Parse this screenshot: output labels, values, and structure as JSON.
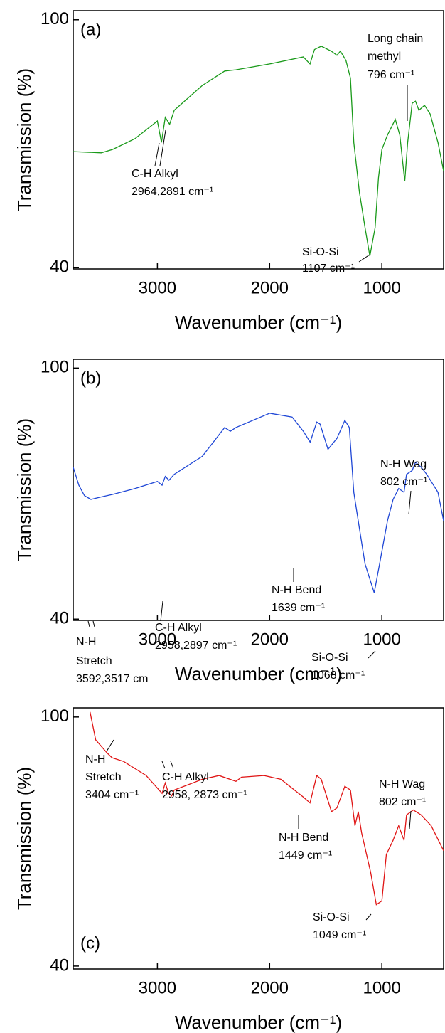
{
  "chart_data": [
    {
      "type": "line",
      "panel_label": "(a)",
      "xlabel": "Wavenumber (cm⁻¹)",
      "ylabel": "Transmission (%)",
      "color": "#1a9a1a",
      "x": [
        3750,
        3500,
        3400,
        3200,
        3000,
        2964,
        2930,
        2891,
        2850,
        2600,
        2400,
        2300,
        2000,
        1700,
        1640,
        1600,
        1540,
        1450,
        1400,
        1370,
        1320,
        1280,
        1250,
        1200,
        1150,
        1107,
        1060,
        1030,
        1000,
        950,
        880,
        840,
        796,
        770,
        730,
        700,
        670,
        620,
        570,
        500,
        450
      ],
      "values": [
        68.1,
        67.8,
        68.6,
        71.2,
        75.5,
        70.3,
        76.4,
        74.7,
        78.1,
        84.1,
        87.6,
        87.9,
        89.3,
        91,
        89.3,
        92.8,
        93.6,
        92.4,
        91.4,
        92.4,
        90.2,
        85.9,
        70.3,
        58.3,
        49.7,
        42.8,
        49.7,
        61.7,
        68.6,
        72.1,
        75.9,
        72.1,
        60.9,
        70.3,
        79.8,
        80.3,
        78.1,
        79.3,
        77.2,
        70.3,
        63.4
      ],
      "xlim": [
        3750,
        450
      ],
      "xticks": [
        3000,
        2000,
        1000
      ],
      "ylim": [
        39.7,
        102.2
      ],
      "yticks": [
        40,
        100
      ],
      "annotations": [
        {
          "lines": [
            "C-H Alkyl",
            "2964,2891 cm⁻¹"
          ]
        },
        {
          "lines": [
            "Long chain",
            "methyl",
            "796 cm⁻¹"
          ]
        },
        {
          "lines": [
            "Si-O-Si",
            "1107 cm⁻¹"
          ]
        }
      ]
    },
    {
      "type": "line",
      "panel_label": "(b)",
      "xlabel": "Wavenumber (cm⁻¹)",
      "ylabel": "Transmission (%)",
      "color": "#1f47d6",
      "x": [
        3750,
        3700,
        3650,
        3592,
        3517,
        3400,
        3200,
        3000,
        2958,
        2930,
        2897,
        2850,
        2600,
        2400,
        2350,
        2300,
        2000,
        1800,
        1700,
        1639,
        1580,
        1550,
        1480,
        1400,
        1330,
        1290,
        1250,
        1200,
        1150,
        1068,
        1020,
        950,
        900,
        850,
        802,
        780,
        730,
        700,
        650,
        600,
        500,
        450
      ],
      "values": [
        76.3,
        72,
        69.5,
        68.6,
        69.1,
        69.8,
        71.2,
        72.9,
        72,
        74.1,
        73.2,
        74.6,
        78.9,
        85.8,
        84.9,
        85.8,
        89.2,
        88.3,
        84.9,
        82.3,
        87.1,
        86.6,
        80.6,
        83.2,
        87.5,
        85.8,
        70.3,
        61.7,
        53.2,
        46.3,
        53.2,
        63.5,
        68.6,
        71.2,
        70.3,
        74.6,
        75.5,
        77.5,
        76.3,
        74.6,
        70.3,
        63.5
      ],
      "xlim": [
        3750,
        450
      ],
      "xticks": [
        3000,
        2000,
        1000
      ],
      "ylim": [
        39.7,
        102.1
      ],
      "yticks": [
        40,
        100
      ],
      "annotations": [
        {
          "lines": [
            "N-H",
            "Stretch",
            "3592,3517 cm"
          ]
        },
        {
          "lines": [
            "C-H Alkyl",
            "2958,2897 cm⁻¹"
          ]
        },
        {
          "lines": [
            "N-H Bend",
            "1639 cm⁻¹"
          ]
        },
        {
          "lines": [
            "N-H Wag",
            "802 cm⁻¹"
          ]
        },
        {
          "lines": [
            "Si-O-Si",
            "1068 cm⁻¹"
          ]
        }
      ]
    },
    {
      "type": "line",
      "panel_label": "(c)",
      "xlabel": "Wavenumber (cm⁻¹)",
      "ylabel": "Transmission (%)",
      "color": "#e01414",
      "x": [
        3600,
        3550,
        3450,
        3404,
        3300,
        3100,
        2958,
        2930,
        2900,
        2873,
        2850,
        2600,
        2450,
        2300,
        2250,
        2050,
        1900,
        1700,
        1640,
        1580,
        1540,
        1449,
        1400,
        1330,
        1280,
        1240,
        1210,
        1180,
        1100,
        1049,
        1000,
        960,
        900,
        850,
        802,
        780,
        720,
        650,
        560,
        450
      ],
      "values": [
        101.2,
        94.5,
        91.4,
        90.2,
        89.3,
        85.9,
        81.6,
        84.1,
        81.6,
        81,
        82.4,
        85,
        85.9,
        84.5,
        85.5,
        85.9,
        85,
        80.7,
        79.3,
        85.9,
        85,
        77.2,
        78.1,
        83.3,
        82.4,
        73.8,
        77.2,
        72.1,
        62.6,
        54.8,
        55.7,
        66.9,
        70.3,
        73.8,
        70.3,
        76.4,
        77.6,
        76.4,
        73.8,
        67.8
      ],
      "xlim": [
        3750,
        450
      ],
      "xticks": [
        3000,
        2000,
        1000
      ],
      "ylim": [
        39.3,
        102.2
      ],
      "yticks": [
        40,
        100
      ],
      "annotations": [
        {
          "lines": [
            "N-H",
            "Stretch",
            "3404 cm⁻¹"
          ]
        },
        {
          "lines": [
            "C-H Alkyl",
            "2958, 2873 cm⁻¹"
          ]
        },
        {
          "lines": [
            "N-H Bend",
            "1449 cm⁻¹"
          ]
        },
        {
          "lines": [
            "N-H Wag",
            "802 cm⁻¹"
          ]
        },
        {
          "lines": [
            "Si-O-Si",
            "1049 cm⁻¹"
          ]
        }
      ]
    }
  ]
}
